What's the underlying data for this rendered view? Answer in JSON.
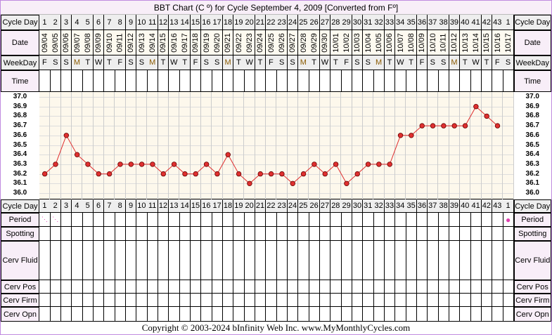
{
  "title": "BBT Chart (C º) for Cycle September 4, 2009  [Converted from Fº]",
  "labels": {
    "cycle_day": "Cycle Day",
    "date": "Date",
    "weekday": "WeekDay",
    "time": "Time",
    "period": "Period",
    "spotting": "Spotting",
    "cerv_fluid": "Cerv Fluid",
    "cerv_pos": "Cerv Pos",
    "cerv_firm": "Cerv Firm",
    "cerv_opn": "Cerv Opn"
  },
  "footer": "Copyright © 2003-2024 bInfinity Web Inc.     www.MyMonthlyCycles.com",
  "colors": {
    "line": "#e03030",
    "point": "#e03030",
    "period": "#e040b0",
    "border": "#c08ae0"
  },
  "chart_data": {
    "type": "line",
    "title": "BBT Chart (C º) for Cycle September 4, 2009  [Converted from Fº]",
    "ylim": [
      36.0,
      37.0
    ],
    "y_ticks": [
      "37.0",
      "36.9",
      "36.8",
      "36.7",
      "36.6",
      "36.5",
      "36.4",
      "36.3",
      "36.2",
      "36.1",
      "36.0"
    ],
    "cycle_days": [
      "1",
      "2",
      "3",
      "4",
      "5",
      "6",
      "7",
      "8",
      "9",
      "10",
      "11",
      "12",
      "13",
      "14",
      "15",
      "16",
      "17",
      "18",
      "19",
      "20",
      "21",
      "22",
      "23",
      "24",
      "25",
      "26",
      "27",
      "28",
      "29",
      "30",
      "31",
      "32",
      "33",
      "34",
      "35",
      "36",
      "37",
      "38",
      "39",
      "40",
      "41",
      "42",
      "43",
      "1"
    ],
    "dates": [
      "09/04",
      "09/05",
      "09/06",
      "09/07",
      "09/08",
      "09/09",
      "09/10",
      "09/11",
      "09/12",
      "09/13",
      "09/14",
      "09/15",
      "09/16",
      "09/17",
      "09/18",
      "09/19",
      "09/20",
      "09/21",
      "09/22",
      "09/23",
      "09/24",
      "09/25",
      "09/26",
      "09/27",
      "09/28",
      "09/29",
      "09/30",
      "10/01",
      "10/02",
      "10/03",
      "10/04",
      "10/05",
      "10/06",
      "10/07",
      "10/08",
      "10/09",
      "10/10",
      "10/11",
      "10/12",
      "10/13",
      "10/14",
      "10/15",
      "10/16",
      "10/17"
    ],
    "weekdays": [
      "F",
      "S",
      "S",
      "M",
      "T",
      "W",
      "T",
      "F",
      "S",
      "S",
      "M",
      "T",
      "W",
      "T",
      "F",
      "S",
      "S",
      "M",
      "T",
      "W",
      "T",
      "F",
      "S",
      "S",
      "M",
      "T",
      "W",
      "T",
      "F",
      "S",
      "S",
      "M",
      "T",
      "W",
      "T",
      "F",
      "S",
      "S",
      "M",
      "T",
      "W",
      "T",
      "F",
      "S"
    ],
    "temperatures": [
      36.2,
      36.3,
      36.6,
      36.4,
      36.3,
      36.2,
      36.2,
      36.3,
      36.3,
      36.3,
      36.3,
      36.2,
      36.3,
      36.2,
      36.2,
      36.3,
      36.2,
      36.4,
      36.2,
      36.1,
      36.2,
      36.2,
      36.2,
      36.1,
      36.2,
      36.3,
      36.2,
      36.3,
      36.1,
      36.2,
      36.3,
      36.3,
      36.3,
      36.6,
      36.6,
      36.7,
      36.7,
      36.7,
      36.7,
      36.7,
      36.9,
      36.8,
      36.7,
      null
    ],
    "period": [
      "light",
      "light",
      "",
      "",
      "",
      "",
      "",
      "",
      "",
      "",
      "",
      "",
      "",
      "",
      "",
      "",
      "",
      "",
      "",
      "",
      "",
      "",
      "",
      "",
      "",
      "",
      "",
      "",
      "",
      "",
      "",
      "",
      "",
      "",
      "",
      "",
      "",
      "",
      "",
      "",
      "",
      "",
      "",
      "dot"
    ]
  }
}
